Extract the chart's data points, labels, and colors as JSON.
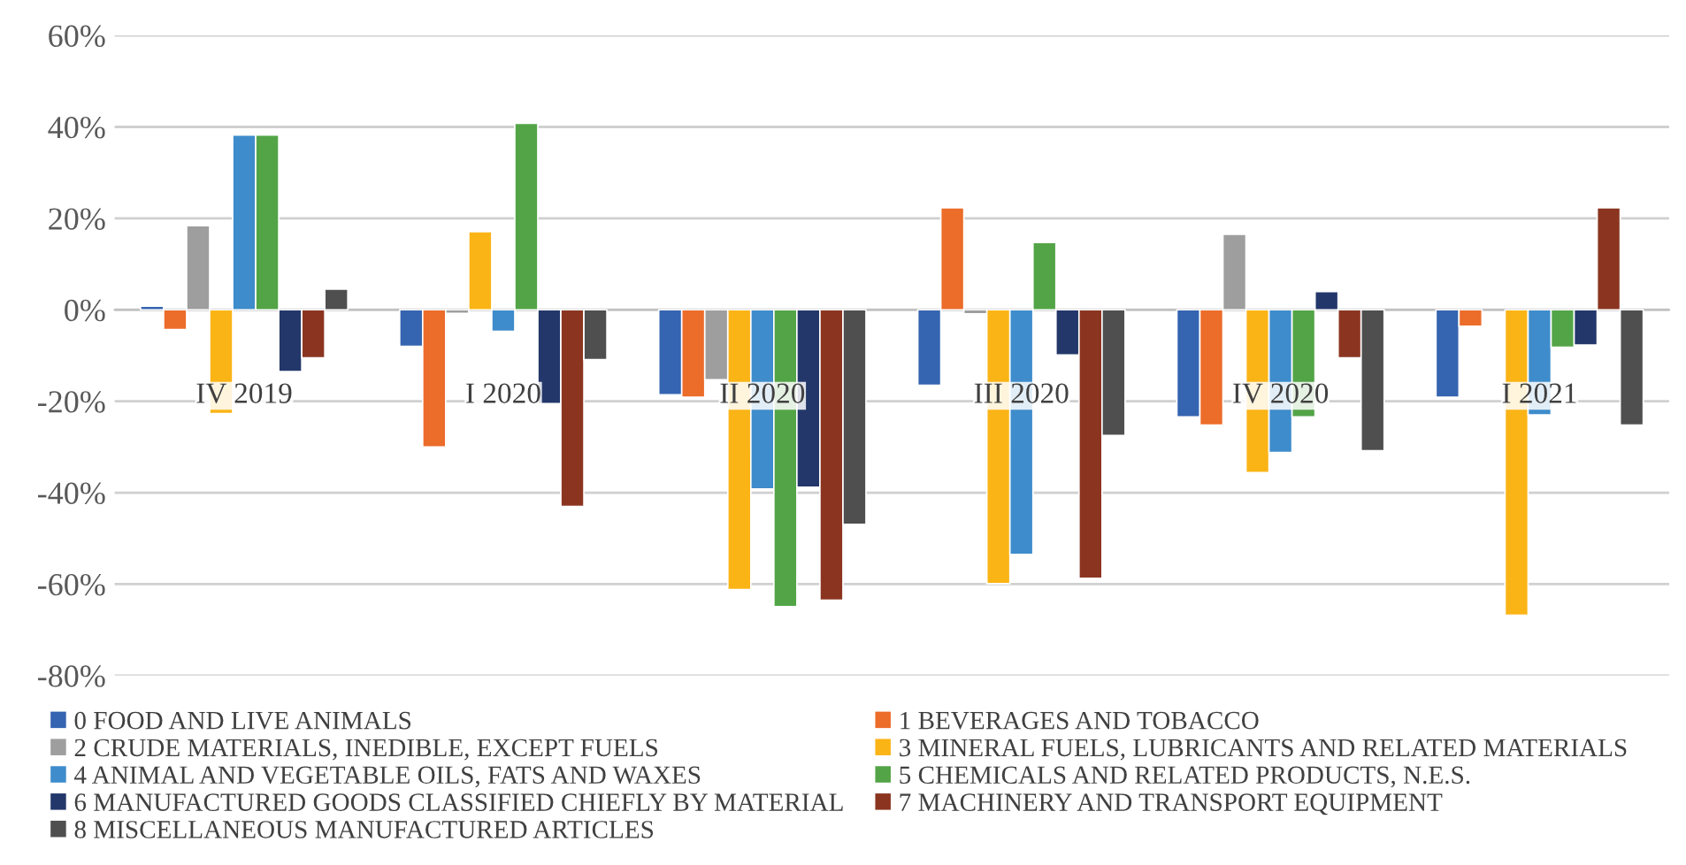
{
  "chart_data": {
    "type": "bar",
    "categories": [
      "IV 2019",
      "I 2020",
      "II 2020",
      "III 2020",
      "IV 2020",
      "I 2021"
    ],
    "series": [
      {
        "name": "0 FOOD AND LIVE ANIMALS",
        "color": "#3564b0",
        "values": [
          0.8,
          -8,
          -18.6,
          -16.5,
          -23.4,
          -19.1
        ]
      },
      {
        "name": "1 BEVERAGES AND TOBACCO",
        "color": "#ec6c2a",
        "values": [
          -4.3,
          -30,
          -19.1,
          22.3,
          -25.2,
          -3.6
        ]
      },
      {
        "name": "2 CRUDE MATERIALS, INEDIBLE, EXCEPT FUELS",
        "color": "#9e9e9e",
        "values": [
          18.4,
          -0.8,
          -15.3,
          -0.9,
          16.5,
          null
        ]
      },
      {
        "name": "3 MINERAL FUELS, LUBRICANTS AND RELATED MATERIALS",
        "color": "#fbb416",
        "values": [
          -22.7,
          17.1,
          -61.2,
          -59.9,
          -35.6,
          -66.8
        ]
      },
      {
        "name": "4 ANIMAL AND VEGETABLE OILS, FATS AND WAXES",
        "color": "#3e8ccb",
        "values": [
          38.2,
          -4.7,
          -39.2,
          -53.5,
          -31.2,
          -23
        ]
      },
      {
        "name": "5 CHEMICALS AND RELATED PRODUCTS, N.E.S.",
        "color": "#53a447",
        "values": [
          38.2,
          40.8,
          -64.9,
          14.7,
          -23.4,
          -8.2
        ]
      },
      {
        "name": "6 MANUFACTURED GOODS CLASSIFIED CHIEFLY BY MATERIAL",
        "color": "#23376a",
        "values": [
          -13.5,
          -20.5,
          -38.8,
          -9.9,
          4,
          -7.7
        ]
      },
      {
        "name": "7 MACHINERY AND TRANSPORT EQUIPMENT",
        "color": "#8b3520",
        "values": [
          -10.5,
          -43,
          -63.5,
          -58.7,
          -10.5,
          22.3
        ]
      },
      {
        "name": "8 MISCELLANEOUS MANUFACTURED ARTICLES",
        "color": "#4f4f4f",
        "values": [
          4.5,
          -10.9,
          -46.9,
          -27.5,
          -30.8,
          -25.2
        ]
      }
    ],
    "ylim": [
      -80,
      60
    ],
    "yticks": [
      {
        "value": -80,
        "label": "-80%"
      },
      {
        "value": -60,
        "label": "-60%"
      },
      {
        "value": -40,
        "label": "-40%"
      },
      {
        "value": -20,
        "label": "-20%"
      },
      {
        "value": 0,
        "label": "0%"
      },
      {
        "value": 20,
        "label": "20%"
      },
      {
        "value": 40,
        "label": "40%"
      },
      {
        "value": 60,
        "label": "60%"
      }
    ],
    "grid": "y",
    "legend": "bottom"
  }
}
